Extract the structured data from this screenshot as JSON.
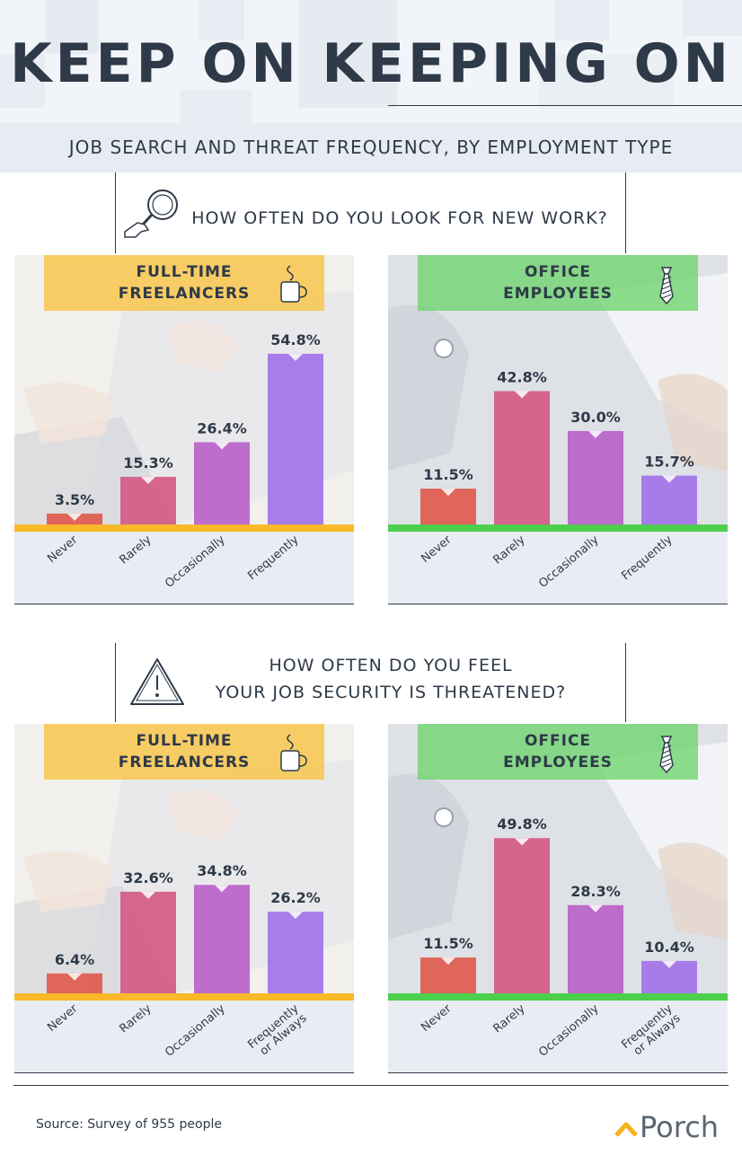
{
  "header": {
    "title": "KEEP ON KEEPING ON",
    "subtitle": "JOB SEARCH AND THREAT FREQUENCY, BY EMPLOYMENT TYPE"
  },
  "sections": [
    {
      "question_lines": [
        "HOW OFTEN DO YOU LOOK FOR NEW WORK?"
      ],
      "icon": "magnifier-hand-icon"
    },
    {
      "question_lines": [
        "HOW OFTEN DO YOU FEEL",
        "YOUR JOB SECURITY IS THREATENED?"
      ],
      "icon": "warning-triangle-icon"
    }
  ],
  "footer": {
    "source": "Source: Survey of 955 people",
    "logo_text": "Porch"
  },
  "colors": {
    "never": "#e05a4e",
    "rarely": "#d45a85",
    "occasionally": "#b862c8",
    "frequently": "#a373e8",
    "freelancer_accent": "#f7c342",
    "office_accent": "#6fd56f",
    "freelancer_baseline": "#f9b928",
    "office_baseline": "#4ccf4c"
  },
  "chart_data": [
    {
      "type": "bar",
      "title": "FULL-TIME FREELANCERS",
      "title_lines": [
        "FULL-TIME",
        "FREELANCERS"
      ],
      "icon": "coffee-cup-icon",
      "categories": [
        "Never",
        "Rarely",
        "Occasionally",
        "Frequently"
      ],
      "values": [
        3.5,
        15.3,
        26.4,
        54.8
      ],
      "value_labels": [
        "3.5%",
        "15.3%",
        "26.4%",
        "54.8%"
      ],
      "ylim": [
        0,
        100
      ]
    },
    {
      "type": "bar",
      "title": "OFFICE EMPLOYEES",
      "title_lines": [
        "OFFICE",
        "EMPLOYEES"
      ],
      "icon": "necktie-icon",
      "categories": [
        "Never",
        "Rarely",
        "Occasionally",
        "Frequently"
      ],
      "values": [
        11.5,
        42.8,
        30.0,
        15.7
      ],
      "value_labels": [
        "11.5%",
        "42.8%",
        "30.0%",
        "15.7%"
      ],
      "ylim": [
        0,
        100
      ]
    },
    {
      "type": "bar",
      "title": "FULL-TIME FREELANCERS",
      "title_lines": [
        "FULL-TIME",
        "FREELANCERS"
      ],
      "icon": "coffee-cup-icon",
      "categories": [
        "Never",
        "Rarely",
        "Occasionally",
        "Frequently or Always"
      ],
      "category_lines": [
        [
          "Never"
        ],
        [
          "Rarely"
        ],
        [
          "Occasionally"
        ],
        [
          "Frequently",
          "or Always"
        ]
      ],
      "values": [
        6.4,
        32.6,
        34.8,
        26.2
      ],
      "value_labels": [
        "6.4%",
        "32.6%",
        "34.8%",
        "26.2%"
      ],
      "ylim": [
        0,
        100
      ]
    },
    {
      "type": "bar",
      "title": "OFFICE EMPLOYEES",
      "title_lines": [
        "OFFICE",
        "EMPLOYEES"
      ],
      "icon": "necktie-icon",
      "categories": [
        "Never",
        "Rarely",
        "Occasionally",
        "Frequently or Always"
      ],
      "category_lines": [
        [
          "Never"
        ],
        [
          "Rarely"
        ],
        [
          "Occasionally"
        ],
        [
          "Frequently",
          "or Always"
        ]
      ],
      "values": [
        11.5,
        49.8,
        28.3,
        10.4
      ],
      "value_labels": [
        "11.5%",
        "49.8%",
        "28.3%",
        "10.4%"
      ],
      "ylim": [
        0,
        100
      ]
    }
  ]
}
